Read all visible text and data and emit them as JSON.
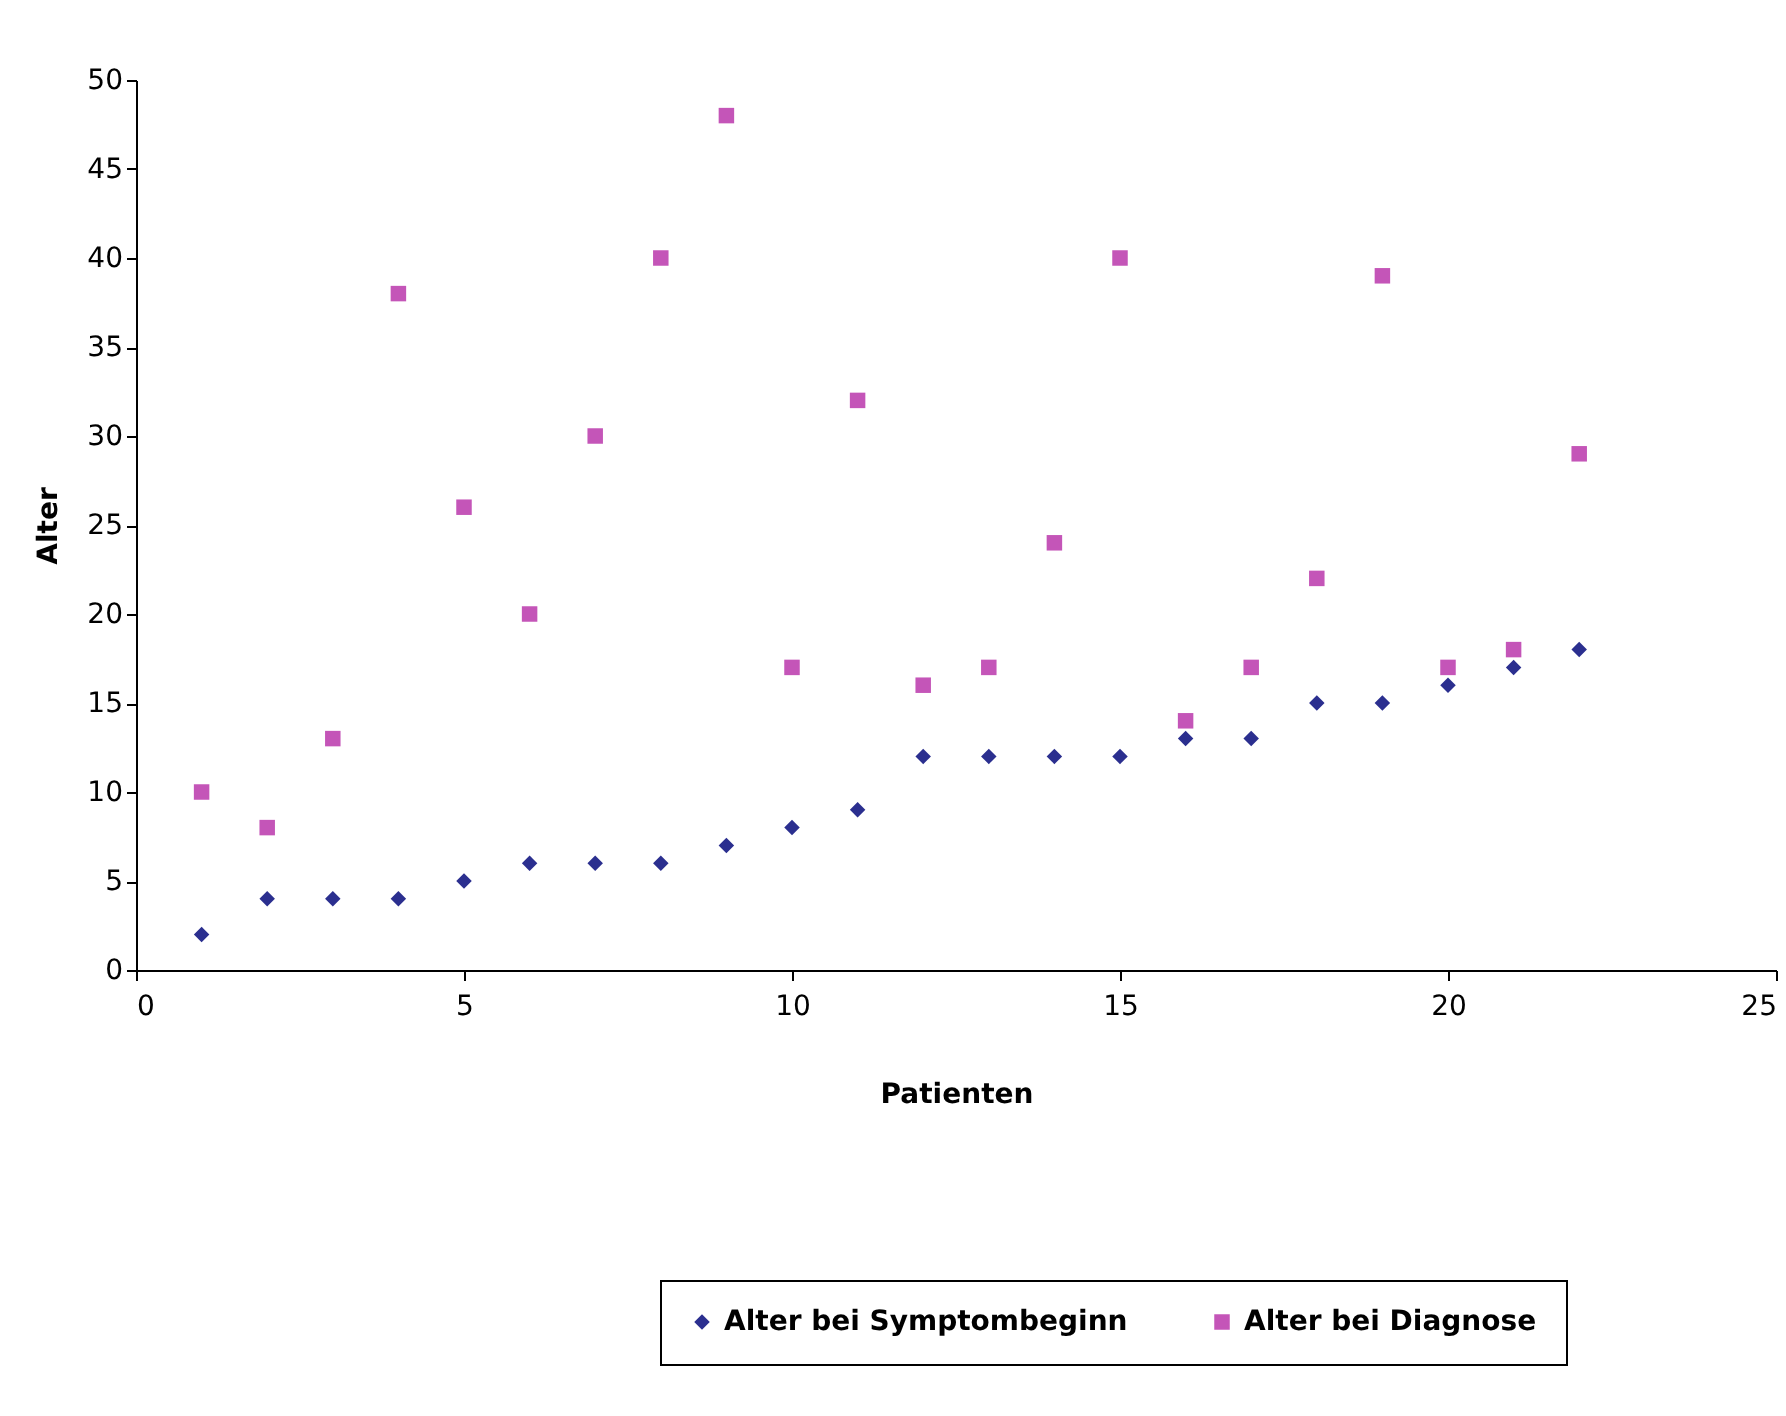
{
  "chart_data": {
    "type": "scatter",
    "xlabel": "Patienten",
    "ylabel": "Alter",
    "x": [
      1,
      2,
      3,
      4,
      5,
      6,
      7,
      8,
      9,
      10,
      11,
      12,
      13,
      14,
      15,
      16,
      17,
      18,
      19,
      20,
      21,
      22
    ],
    "series": [
      {
        "name": "Alter bei Symptombeginn",
        "color": "#2b2f8f",
        "marker": "diamond",
        "values": [
          2,
          4,
          4,
          4,
          5,
          6,
          6,
          6,
          7,
          8,
          9,
          12,
          12,
          12,
          12,
          13,
          13,
          15,
          15,
          16,
          17,
          18
        ]
      },
      {
        "name": "Alter bei Diagnose",
        "color": "#c455b8",
        "marker": "square",
        "values": [
          10,
          8,
          13,
          38,
          26,
          20,
          30,
          40,
          48,
          17,
          32,
          16,
          17,
          24,
          40,
          14,
          17,
          22,
          39,
          17,
          18,
          29
        ]
      }
    ],
    "xlim": [
      0,
      25
    ],
    "xticks": [
      0,
      5,
      10,
      15,
      20,
      25
    ],
    "ylim": [
      0,
      50
    ],
    "yticks": [
      0,
      5,
      10,
      15,
      20,
      25,
      30,
      35,
      40,
      45,
      50
    ],
    "grid": false,
    "legend": "bottom"
  }
}
